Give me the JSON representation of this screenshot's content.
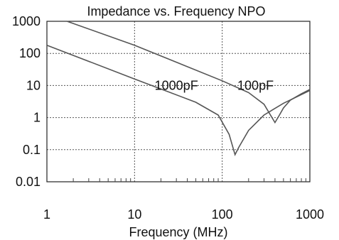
{
  "chart_data": {
    "type": "line",
    "title": "Impedance vs. Frequency NPO",
    "xlabel": "Frequency (MHz)",
    "ylabel": "",
    "x_scale": "log",
    "y_scale": "log",
    "xlim": [
      1,
      1000
    ],
    "ylim": [
      0.01,
      1000
    ],
    "grid": true,
    "x_ticks": [
      "1",
      "10",
      "100",
      "1000"
    ],
    "y_ticks": [
      "1000",
      "100",
      "10",
      "1",
      "0.1",
      "0.01"
    ],
    "series": [
      {
        "name": "1000pF",
        "x": [
          1,
          10,
          50,
          90,
          120,
          140,
          155,
          200,
          300,
          500,
          1000
        ],
        "y": [
          180,
          16,
          3,
          1.2,
          0.3,
          0.07,
          0.12,
          0.4,
          1.2,
          2.8,
          7
        ]
      },
      {
        "name": "100pF",
        "x": [
          1.7,
          10,
          100,
          200,
          300,
          400,
          450,
          500,
          600,
          800,
          1000
        ],
        "y": [
          1000,
          180,
          14,
          6,
          2.6,
          0.7,
          1.2,
          2,
          3.5,
          5.5,
          7.5
        ]
      }
    ],
    "annotations": [
      {
        "text": "1000pF",
        "x": 30,
        "y": 10
      },
      {
        "text": "100pF",
        "x": 240,
        "y": 10
      }
    ]
  }
}
